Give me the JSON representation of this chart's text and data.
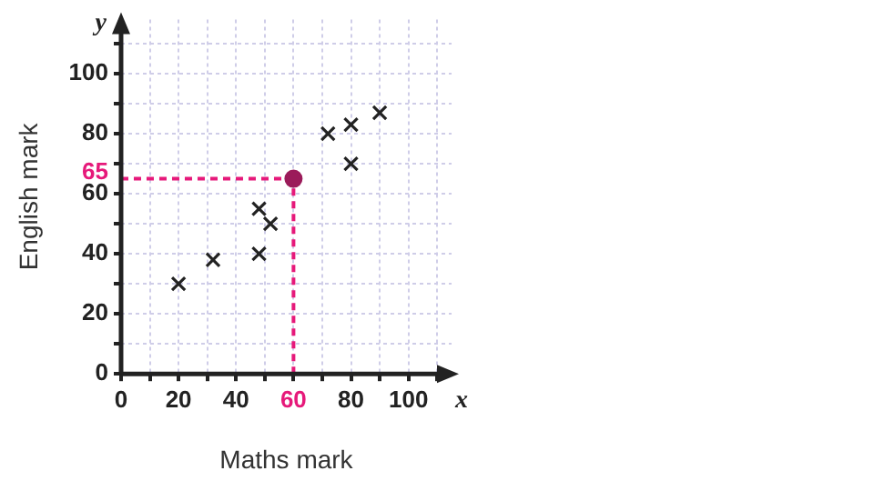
{
  "chart_data": {
    "type": "scatter",
    "xlabel": "Maths mark",
    "ylabel": "English mark",
    "annotations": [
      "x",
      "y"
    ],
    "series": [
      {
        "x": [
          20,
          32,
          48,
          48,
          52,
          72,
          80,
          80,
          90
        ],
        "values": [
          30,
          38,
          40,
          55,
          50,
          80,
          83,
          70,
          87
        ],
        "color": "#222222",
        "marker": "cross"
      },
      {
        "x": [
          60
        ],
        "values": [
          65
        ],
        "color": "#9b1b5a",
        "marker": "circle"
      }
    ],
    "xlim": [
      0,
      115
    ],
    "ylim": [
      0,
      118
    ],
    "xticks": [
      0,
      {
        "value": 10,
        "label": null
      },
      20,
      {
        "value": 30,
        "label": null
      },
      40,
      {
        "value": 50,
        "label": null
      },
      60,
      {
        "value": 70,
        "label": null
      },
      80,
      {
        "value": 90,
        "label": null
      },
      100,
      {
        "value": 110,
        "label": null
      }
    ],
    "yticks": [
      0,
      {
        "value": 10,
        "label": null
      },
      20,
      {
        "value": 30,
        "label": null
      },
      40,
      {
        "value": 50,
        "label": null
      },
      60,
      {
        "value": 70,
        "label": null
      },
      80,
      {
        "value": 90,
        "label": null
      },
      100,
      {
        "value": 110,
        "label": null
      }
    ],
    "ref_lines": [
      {
        "axis": "x",
        "value": 60,
        "color": "#e6197a",
        "line_style": "dashed"
      },
      {
        "axis": "y",
        "value": 65,
        "label": "65",
        "color": "#e6197a",
        "line_style": "dashed"
      }
    ],
    "grid": true
  }
}
